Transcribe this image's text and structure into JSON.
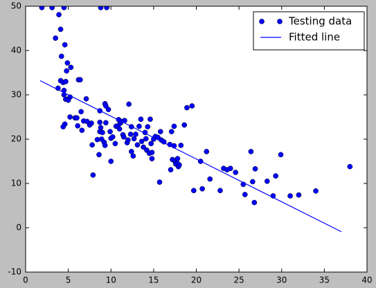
{
  "chart_data": {
    "type": "scatter",
    "xlim": [
      0,
      40
    ],
    "xticks": [
      0,
      5,
      10,
      15,
      20,
      25,
      30,
      35,
      40
    ],
    "ylim": [
      -10,
      50
    ],
    "yticks": [
      -10,
      0,
      10,
      20,
      30,
      40,
      50
    ],
    "legend": "upper right",
    "series": [
      {
        "name": "Testing data",
        "kind": "points",
        "color": "#0000ff",
        "x": [
          1.9,
          3.1,
          4.5,
          8.8,
          9.5,
          3.5,
          3.9,
          4.1,
          4.6,
          4.2,
          4.9,
          5.3,
          4.8,
          3.8,
          4.1,
          4.4,
          4.7,
          4.5,
          4.5,
          4.7,
          5.2,
          5.0,
          4.6,
          4.4,
          5.2,
          5.8,
          6.0,
          6.1,
          6.2,
          6.4,
          6.5,
          6.6,
          6.8,
          7.1,
          7.2,
          7.5,
          7.7,
          7.8,
          7.9,
          8.4,
          8.6,
          8.7,
          8.7,
          8.7,
          8.8,
          8.9,
          9.0,
          9.2,
          9.3,
          9.3,
          9.4,
          9.4,
          9.7,
          9.9,
          10.0,
          10.0,
          10.2,
          10.5,
          10.6,
          10.8,
          10.9,
          11.0,
          11.1,
          11.2,
          11.4,
          11.5,
          11.6,
          11.9,
          12.0,
          12.1,
          12.3,
          12.4,
          12.4,
          12.6,
          12.7,
          12.9,
          13.1,
          13.3,
          13.5,
          13.6,
          13.8,
          14.0,
          14.1,
          14.2,
          14.3,
          14.5,
          14.6,
          14.7,
          14.8,
          14.8,
          15.0,
          15.2,
          15.5,
          15.7,
          15.8,
          15.9,
          16.2,
          16.9,
          17.0,
          17.1,
          17.2,
          17.4,
          17.4,
          17.5,
          17.6,
          17.8,
          17.8,
          17.9,
          18.0,
          18.2,
          18.6,
          18.9,
          19.5,
          19.7,
          20.5,
          20.7,
          21.2,
          21.6,
          22.8,
          23.2,
          23.6,
          24.0,
          24.6,
          25.5,
          25.7,
          26.4,
          26.6,
          26.8,
          26.9,
          28.3,
          29.0,
          29.3,
          29.9,
          31.0,
          32.0,
          34.0,
          38.0
        ],
        "values": [
          49.7,
          49.7,
          49.7,
          49.7,
          49.7,
          42.8,
          48.1,
          44.8,
          41.3,
          38.7,
          37.2,
          36.2,
          35.4,
          31.5,
          33.2,
          32.8,
          33.0,
          31.0,
          30.0,
          29.0,
          29.5,
          28.8,
          23.4,
          22.8,
          25.0,
          24.8,
          24.8,
          23.0,
          33.4,
          33.4,
          26.2,
          22.0,
          24.1,
          29.1,
          24.0,
          23.2,
          23.6,
          18.7,
          11.9,
          19.9,
          16.5,
          21.7,
          26.4,
          23.8,
          22.6,
          20.0,
          21.5,
          19.3,
          18.6,
          28.0,
          23.7,
          27.5,
          26.7,
          21.7,
          20.2,
          15.0,
          20.5,
          19.0,
          22.9,
          23.0,
          24.4,
          22.3,
          23.6,
          24.0,
          21.0,
          20.5,
          24.2,
          19.2,
          19.8,
          27.9,
          21.1,
          17.2,
          22.8,
          16.2,
          20.1,
          21.1,
          18.7,
          22.9,
          24.5,
          19.5,
          18.2,
          21.5,
          20.1,
          17.5,
          22.8,
          16.8,
          24.5,
          19.0,
          17.0,
          15.6,
          20.0,
          20.6,
          20.4,
          10.3,
          21.7,
          19.8,
          19.4,
          18.8,
          13.1,
          21.7,
          15.4,
          22.9,
          18.5,
          15.0,
          14.4,
          14.5,
          15.6,
          13.8,
          14.2,
          18.6,
          23.2,
          27.1,
          27.5,
          8.4,
          15.0,
          8.8,
          17.2,
          11.0,
          8.4,
          13.4,
          13.1,
          13.4,
          12.5,
          9.8,
          7.5,
          17.2,
          10.4,
          5.7,
          13.3,
          10.5,
          7.2,
          11.7,
          16.5,
          7.2,
          7.4,
          8.3,
          13.8
        ]
      },
      {
        "name": "Fitted line",
        "kind": "line",
        "color": "#0000ff",
        "x": [
          1.7,
          37.0
        ],
        "values": [
          33.2,
          -0.9
        ]
      }
    ]
  }
}
